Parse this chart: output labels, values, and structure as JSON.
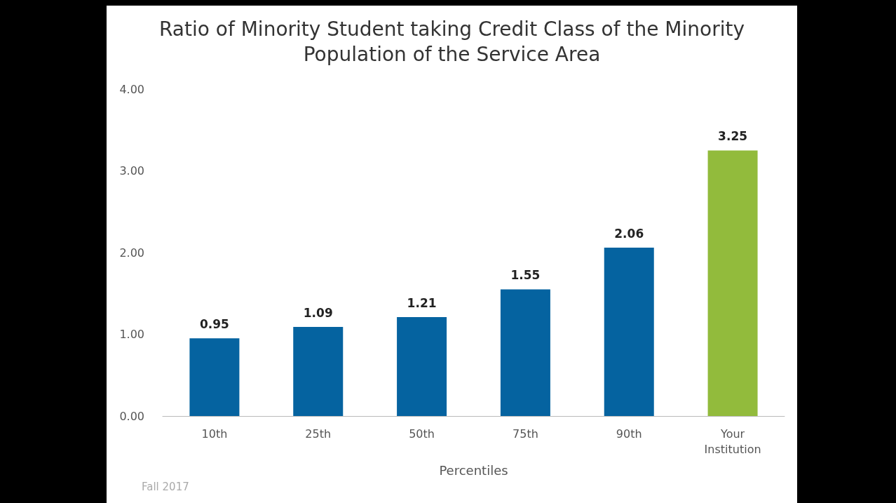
{
  "chart_data": {
    "type": "bar",
    "title": "Ratio of Minority Student taking Credit Class of the Minority\nPopulation of the Service Area",
    "xlabel": "Percentiles",
    "categories": [
      "10th",
      "25th",
      "50th",
      "75th",
      "90th",
      "Your\nInstitution"
    ],
    "values": [
      0.95,
      1.09,
      1.21,
      1.55,
      2.06,
      3.25
    ],
    "colors": [
      "#0563a0",
      "#0563a0",
      "#0563a0",
      "#0563a0",
      "#0563a0",
      "#92bb3c"
    ],
    "ylim": [
      0,
      4
    ],
    "yticks": [
      {
        "value": 0,
        "label": "0.00"
      },
      {
        "value": 1,
        "label": "1.00"
      },
      {
        "value": 2,
        "label": "2.00"
      },
      {
        "value": 3,
        "label": "3.00"
      },
      {
        "value": 4,
        "label": "4.00"
      }
    ],
    "data_labels": true,
    "annotations": [
      "Fall 2017"
    ]
  }
}
